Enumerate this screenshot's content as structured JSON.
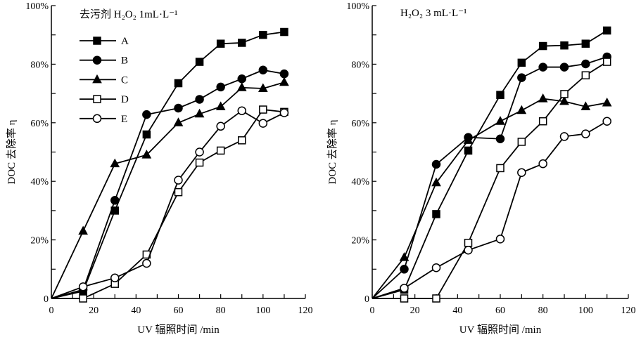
{
  "chart_data": [
    {
      "type": "line",
      "title": "去污剂 H₂O₂ 1mL·L⁻¹",
      "xlabel": "UV 辐照时间 /min",
      "ylabel": "DOC 去除率 η",
      "xlim": [
        0,
        120
      ],
      "ylim": [
        0,
        100
      ],
      "xticks": [
        0,
        20,
        40,
        60,
        80,
        100,
        120
      ],
      "yticks": [
        "0",
        "20%",
        "40%",
        "60%",
        "80%",
        "100%"
      ],
      "grid": false,
      "legend": "upper-left",
      "x": [
        0,
        15,
        30,
        45,
        60,
        70,
        80,
        90,
        100,
        110
      ],
      "series": [
        {
          "name": "A",
          "marker": "filled-square",
          "values": [
            0,
            2.5,
            30,
            56,
            73.5,
            80.8,
            87,
            87.3,
            90,
            91
          ]
        },
        {
          "name": "B",
          "marker": "filled-circle",
          "values": [
            0,
            3,
            33.5,
            62.8,
            65,
            68,
            72.2,
            75,
            78,
            76.7
          ]
        },
        {
          "name": "C",
          "marker": "filled-triangle",
          "values": [
            0,
            23,
            46,
            49,
            60,
            63,
            65.5,
            72,
            71.7,
            73.8
          ]
        },
        {
          "name": "D",
          "marker": "open-square",
          "values": [
            0,
            0,
            5,
            15,
            36.3,
            46.4,
            50.5,
            54,
            64.5,
            63.7
          ]
        },
        {
          "name": "E",
          "marker": "open-circle",
          "values": [
            0,
            4,
            7,
            12,
            40.4,
            50,
            58.8,
            64.1,
            59.8,
            63.4
          ]
        }
      ]
    },
    {
      "type": "line",
      "title": "H₂O₂ 3 mL·L⁻¹",
      "xlabel": "UV 辐照时间 /min",
      "ylabel": "DOC 去除率 η",
      "xlim": [
        0,
        120
      ],
      "ylim": [
        0,
        100
      ],
      "xticks": [
        0,
        20,
        40,
        60,
        80,
        100,
        120
      ],
      "yticks": [
        "0",
        "20%",
        "40%",
        "60%",
        "80%",
        "100%"
      ],
      "grid": false,
      "x": [
        0,
        15,
        30,
        45,
        60,
        70,
        80,
        90,
        100,
        110
      ],
      "series": [
        {
          "marker": "filled-square",
          "values": [
            0,
            3,
            28.8,
            50.5,
            69.5,
            80.5,
            86.2,
            86.4,
            87,
            91.5
          ]
        },
        {
          "marker": "filled-circle",
          "values": [
            0,
            10,
            45.8,
            55,
            54.5,
            75.4,
            79,
            79,
            80.1,
            82.5
          ]
        },
        {
          "marker": "filled-triangle",
          "values": [
            0,
            14,
            39.5,
            54,
            60.5,
            64.2,
            68.2,
            67.3,
            65.5,
            66.8
          ]
        },
        {
          "marker": "open-square",
          "values": [
            0,
            0,
            0,
            19,
            44.5,
            53.5,
            60.5,
            69.8,
            76.2,
            80.8
          ]
        },
        {
          "marker": "open-circle",
          "values": [
            0,
            3.5,
            10.5,
            16.5,
            20.3,
            43,
            46,
            55.3,
            56.2,
            60.5
          ]
        }
      ]
    }
  ]
}
